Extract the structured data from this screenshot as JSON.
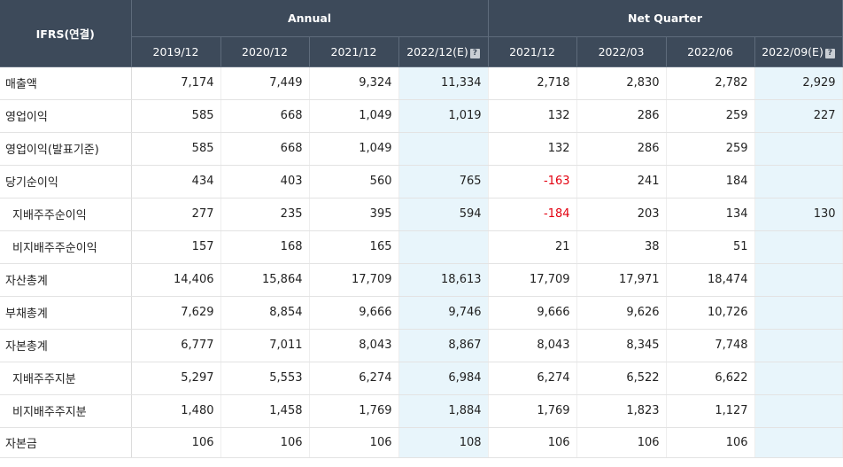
{
  "header": {
    "corner": "IFRS(연결)",
    "groups": [
      "Annual",
      "Net Quarter"
    ],
    "periods": [
      "2019/12",
      "2020/12",
      "2021/12",
      "2022/12(E)",
      "2021/12",
      "2022/03",
      "2022/06",
      "2022/09(E)"
    ],
    "info_icon": "question-icon"
  },
  "colors": {
    "header_bg": "#3d4a5a",
    "estimate_bg": "#e8f5fb",
    "negative": "#e3000f"
  },
  "rows": [
    {
      "label": "매출액",
      "sub": false,
      "values": [
        "7,174",
        "7,449",
        "9,324",
        "11,334",
        "2,718",
        "2,830",
        "2,782",
        "2,929"
      ]
    },
    {
      "label": "영업이익",
      "sub": false,
      "values": [
        "585",
        "668",
        "1,049",
        "1,019",
        "132",
        "286",
        "259",
        "227"
      ]
    },
    {
      "label": "영업이익(발표기준)",
      "sub": false,
      "values": [
        "585",
        "668",
        "1,049",
        "",
        "132",
        "286",
        "259",
        ""
      ]
    },
    {
      "label": "당기순이익",
      "sub": false,
      "values": [
        "434",
        "403",
        "560",
        "765",
        "-163",
        "241",
        "184",
        ""
      ]
    },
    {
      "label": "지배주주순이익",
      "sub": true,
      "values": [
        "277",
        "235",
        "395",
        "594",
        "-184",
        "203",
        "134",
        "130"
      ]
    },
    {
      "label": "비지배주주순이익",
      "sub": true,
      "values": [
        "157",
        "168",
        "165",
        "",
        "21",
        "38",
        "51",
        ""
      ]
    },
    {
      "label": "자산총계",
      "sub": false,
      "values": [
        "14,406",
        "15,864",
        "17,709",
        "18,613",
        "17,709",
        "17,971",
        "18,474",
        ""
      ]
    },
    {
      "label": "부채총계",
      "sub": false,
      "values": [
        "7,629",
        "8,854",
        "9,666",
        "9,746",
        "9,666",
        "9,626",
        "10,726",
        ""
      ]
    },
    {
      "label": "자본총계",
      "sub": false,
      "values": [
        "6,777",
        "7,011",
        "8,043",
        "8,867",
        "8,043",
        "8,345",
        "7,748",
        ""
      ]
    },
    {
      "label": "지배주주지분",
      "sub": true,
      "values": [
        "5,297",
        "5,553",
        "6,274",
        "6,984",
        "6,274",
        "6,522",
        "6,622",
        ""
      ]
    },
    {
      "label": "비지배주주지분",
      "sub": true,
      "values": [
        "1,480",
        "1,458",
        "1,769",
        "1,884",
        "1,769",
        "1,823",
        "1,127",
        ""
      ]
    },
    {
      "label": "자본금",
      "sub": false,
      "values": [
        "106",
        "106",
        "106",
        "108",
        "106",
        "106",
        "106",
        ""
      ]
    }
  ]
}
